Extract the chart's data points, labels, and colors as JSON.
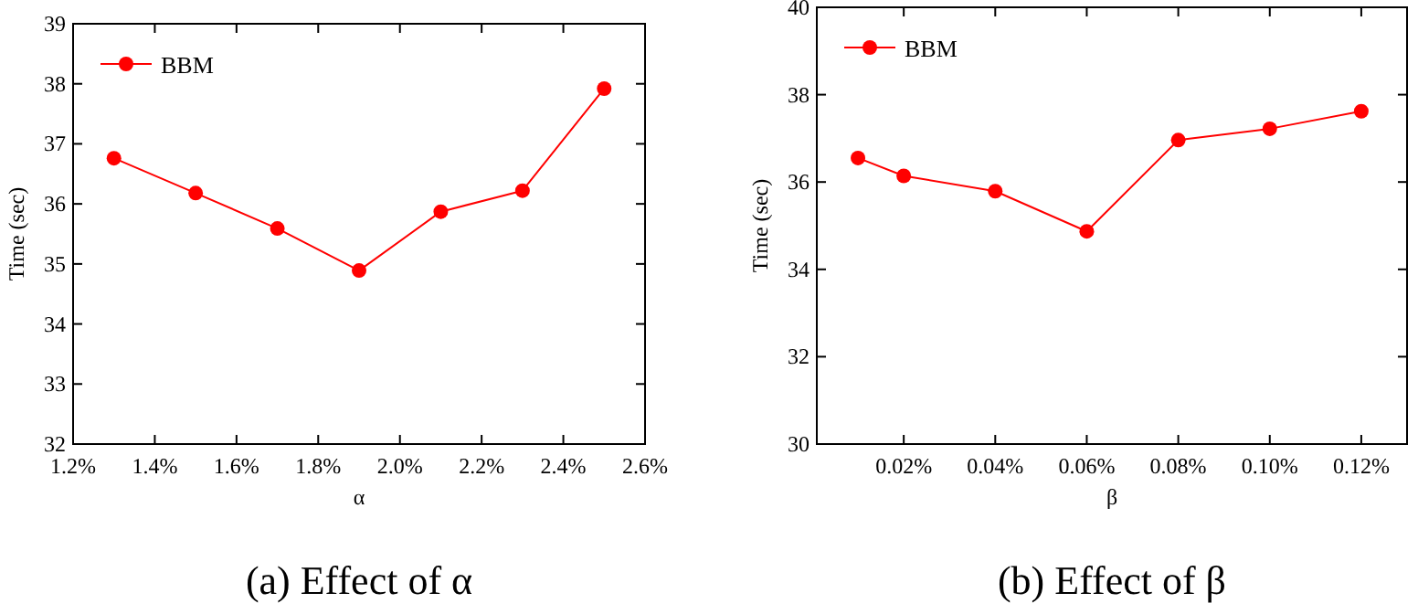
{
  "chart_data": [
    {
      "type": "line",
      "title": "(a) Effect of α",
      "xlabel": "α",
      "ylabel": "Time (sec)",
      "x": [
        1.3,
        1.5,
        1.7,
        1.9,
        2.1,
        2.3,
        2.5
      ],
      "series": [
        {
          "name": "BBM",
          "color": "#ff0000",
          "values": [
            36.76,
            36.18,
            35.59,
            34.89,
            35.87,
            36.22,
            37.92
          ]
        }
      ],
      "xlim": [
        1.2,
        2.6
      ],
      "xticks": [
        {
          "value": 1.2,
          "label": "1.2%"
        },
        {
          "value": 1.4,
          "label": "1.4%"
        },
        {
          "value": 1.6,
          "label": "1.6%"
        },
        {
          "value": 1.8,
          "label": "1.8%"
        },
        {
          "value": 2.0,
          "label": "2.0%"
        },
        {
          "value": 2.2,
          "label": "2.2%"
        },
        {
          "value": 2.4,
          "label": "2.4%"
        },
        {
          "value": 2.6,
          "label": "2.6%"
        }
      ],
      "ylim": [
        32,
        39
      ],
      "yticks": [
        32,
        33,
        34,
        35,
        36,
        37,
        38,
        39
      ],
      "marker": "circle",
      "line_style": "solid",
      "legend": "top left",
      "grid": false
    },
    {
      "type": "line",
      "title": "(b) Effect of β",
      "xlabel": "β",
      "ylabel": "Time (sec)",
      "x": [
        0.01,
        0.02,
        0.04,
        0.06,
        0.08,
        0.1,
        0.12
      ],
      "series": [
        {
          "name": "BBM",
          "color": "#ff0000",
          "values": [
            36.55,
            36.14,
            35.79,
            34.87,
            36.96,
            37.22,
            37.62
          ]
        }
      ],
      "xlim": [
        0.001,
        0.13
      ],
      "xticks": [
        {
          "value": 0.02,
          "label": "0.02%"
        },
        {
          "value": 0.04,
          "label": "0.04%"
        },
        {
          "value": 0.06,
          "label": "0.06%"
        },
        {
          "value": 0.08,
          "label": "0.08%"
        },
        {
          "value": 0.1,
          "label": "0.10%"
        },
        {
          "value": 0.12,
          "label": "0.12%"
        }
      ],
      "ylim": [
        30,
        40
      ],
      "yticks": [
        30,
        32,
        34,
        36,
        38,
        40
      ],
      "marker": "circle",
      "line_style": "solid",
      "legend": "top left",
      "grid": false
    }
  ]
}
